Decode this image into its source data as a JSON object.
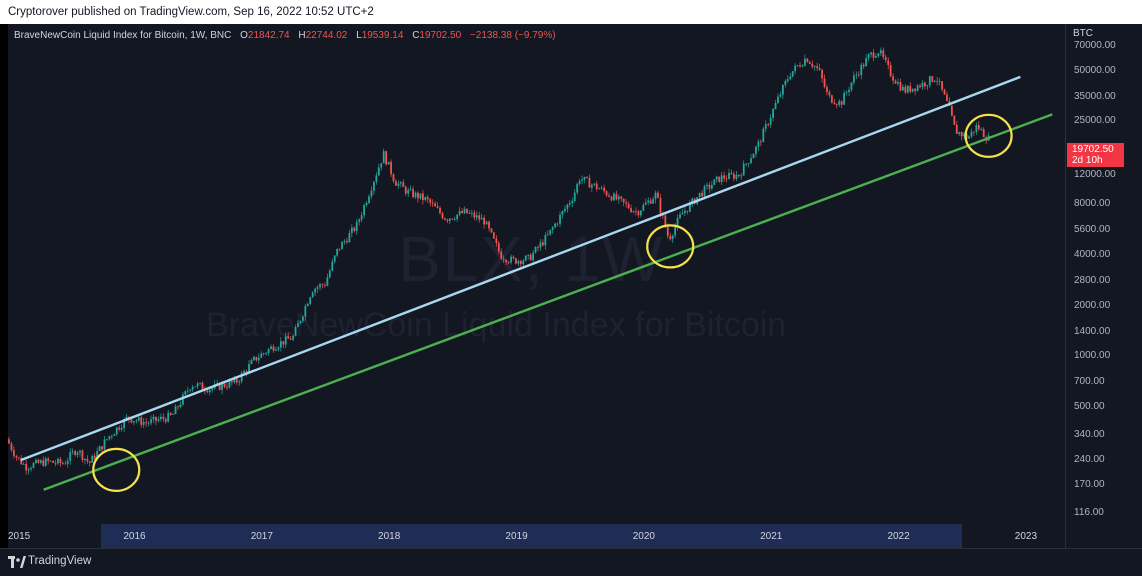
{
  "header": {
    "published": "Cryptorover published on TradingView.com, Sep 16, 2022 10:52 UTC+2"
  },
  "legend": {
    "symbol": "BraveNewCoin Liquid Index for Bitcoin, 1W, BNC",
    "open_label": "O",
    "open": "21842.74",
    "high_label": "H",
    "high": "22744.02",
    "low_label": "L",
    "low": "19539.14",
    "close_label": "C",
    "close": "19702.50",
    "change": "−2138.38 (−9.79%)"
  },
  "watermark": {
    "ticker": "BLX, 1W",
    "name": "BraveNewCoin Liquid Index for Bitcoin"
  },
  "price_scale": {
    "unit": "BTC",
    "last_price": "19702.50",
    "countdown": "2d 10h"
  },
  "footer": {
    "brand": "TradingView"
  },
  "colors": {
    "up": "#26a69a",
    "down": "#ef5350",
    "background": "#131722",
    "upper_trendline": "#a8d8f0",
    "lower_trendline": "#4caf50",
    "circle": "#f5e14a",
    "last_price_tag": "#f23645"
  },
  "chart_data": {
    "type": "candlestick",
    "scale": "log",
    "timeframe": "1W",
    "ylim": [
      100,
      95000
    ],
    "xlim": [
      2015.0,
      2023.3
    ],
    "y_ticks": [
      "70000.00",
      "50000.00",
      "35000.00",
      "25000.00",
      "12000.00",
      "8000.00",
      "5600.00",
      "4000.00",
      "2800.00",
      "2000.00",
      "1400.00",
      "1000.00",
      "700.00",
      "500.00",
      "340.00",
      "240.00",
      "170.00",
      "116.00"
    ],
    "x_ticks": [
      {
        "label": "2015",
        "x": 2015.0
      },
      {
        "label": "2016",
        "x": 2016.0
      },
      {
        "label": "2017",
        "x": 2017.0
      },
      {
        "label": "2018",
        "x": 2018.0
      },
      {
        "label": "2019",
        "x": 2019.0
      },
      {
        "label": "2020",
        "x": 2020.0
      },
      {
        "label": "2021",
        "x": 2021.0
      },
      {
        "label": "2022",
        "x": 2022.0
      },
      {
        "label": "2023",
        "x": 2023.0
      }
    ],
    "price_path": [
      [
        2015.0,
        320
      ],
      [
        2015.08,
        250
      ],
      [
        2015.15,
        220
      ],
      [
        2015.3,
        235
      ],
      [
        2015.45,
        230
      ],
      [
        2015.55,
        280
      ],
      [
        2015.65,
        230
      ],
      [
        2015.8,
        330
      ],
      [
        2015.95,
        430
      ],
      [
        2016.1,
        400
      ],
      [
        2016.3,
        440
      ],
      [
        2016.45,
        680
      ],
      [
        2016.6,
        640
      ],
      [
        2016.8,
        700
      ],
      [
        2016.95,
        960
      ],
      [
        2017.1,
        1150
      ],
      [
        2017.25,
        1300
      ],
      [
        2017.4,
        2500
      ],
      [
        2017.5,
        2700
      ],
      [
        2017.6,
        4300
      ],
      [
        2017.75,
        6000
      ],
      [
        2017.88,
        11000
      ],
      [
        2017.96,
        16000
      ],
      [
        2018.05,
        11000
      ],
      [
        2018.15,
        9500
      ],
      [
        2018.3,
        8500
      ],
      [
        2018.45,
        6600
      ],
      [
        2018.6,
        7200
      ],
      [
        2018.75,
        6400
      ],
      [
        2018.88,
        4000
      ],
      [
        2018.97,
        3700
      ],
      [
        2019.1,
        3800
      ],
      [
        2019.25,
        5200
      ],
      [
        2019.45,
        9000
      ],
      [
        2019.5,
        11500
      ],
      [
        2019.65,
        10000
      ],
      [
        2019.8,
        8500
      ],
      [
        2019.95,
        7200
      ],
      [
        2020.1,
        9200
      ],
      [
        2020.2,
        5000
      ],
      [
        2020.3,
        7000
      ],
      [
        2020.45,
        9300
      ],
      [
        2020.6,
        11500
      ],
      [
        2020.75,
        12000
      ],
      [
        2020.9,
        18000
      ],
      [
        2021.05,
        33000
      ],
      [
        2021.15,
        48000
      ],
      [
        2021.28,
        60000
      ],
      [
        2021.38,
        50000
      ],
      [
        2021.45,
        35000
      ],
      [
        2021.55,
        32000
      ],
      [
        2021.65,
        45000
      ],
      [
        2021.78,
        62000
      ],
      [
        2021.85,
        66000
      ],
      [
        2021.95,
        47000
      ],
      [
        2022.05,
        38000
      ],
      [
        2022.2,
        42000
      ],
      [
        2022.3,
        46000
      ],
      [
        2022.4,
        30000
      ],
      [
        2022.45,
        22000
      ],
      [
        2022.55,
        20000
      ],
      [
        2022.62,
        23500
      ],
      [
        2022.7,
        20000
      ],
      [
        2022.71,
        19702.5
      ]
    ],
    "trendlines": [
      {
        "role": "upper",
        "start": [
          2015.1,
          240
        ],
        "end": [
          2022.95,
          46000
        ]
      },
      {
        "role": "lower",
        "start": [
          2015.28,
          160
        ],
        "end": [
          2023.2,
          27500
        ]
      }
    ],
    "annotations": [
      {
        "type": "circle",
        "x": 2015.85,
        "y": 210
      },
      {
        "type": "circle",
        "x": 2020.2,
        "y": 4500
      },
      {
        "type": "circle",
        "x": 2022.7,
        "y": 20500
      }
    ],
    "last_price": 19702.5
  }
}
